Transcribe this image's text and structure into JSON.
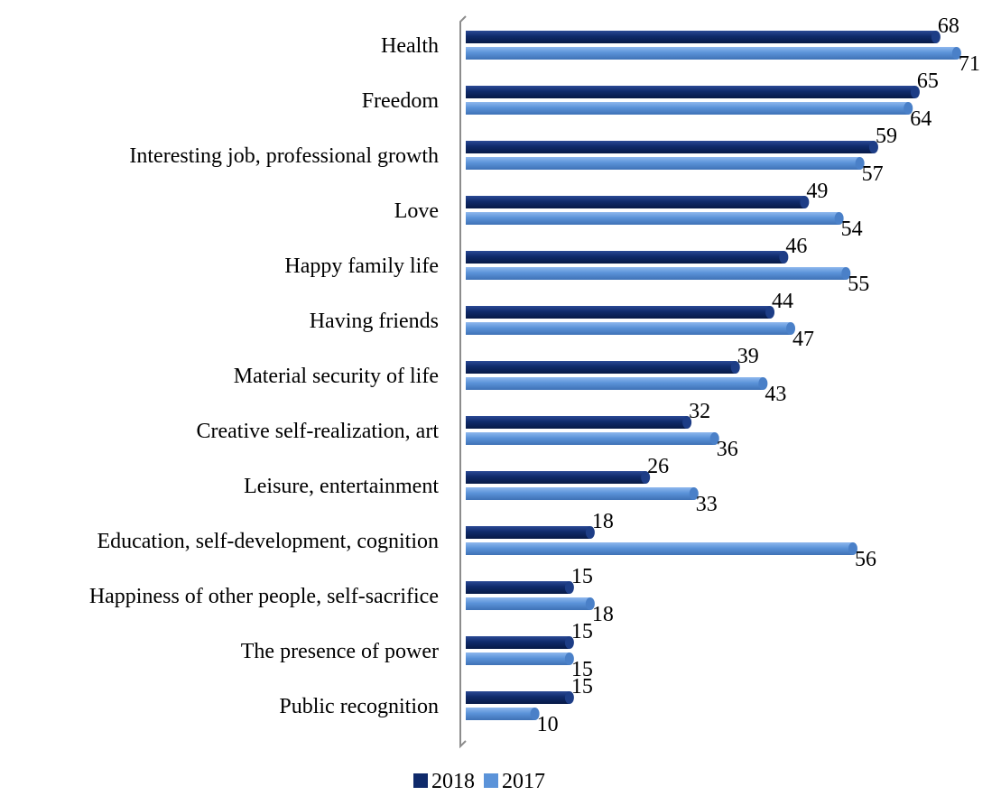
{
  "chart_data": {
    "type": "bar",
    "orientation": "horizontal",
    "categories": [
      "Health",
      "Freedom",
      "Interesting job, professional growth",
      "Love",
      "Happy family life",
      "Having friends",
      "Material security of life",
      "Creative self-realization, art",
      "Leisure, entertainment",
      "Education, self-development, cognition",
      "Happiness of other people, self-sacrifice",
      "The presence of power",
      "Public recognition"
    ],
    "series": [
      {
        "name": "2018",
        "color": "#0f2a6b",
        "values": [
          68,
          65,
          59,
          49,
          46,
          44,
          39,
          32,
          26,
          18,
          15,
          15,
          15
        ]
      },
      {
        "name": "2017",
        "color": "#5b93d9",
        "values": [
          71,
          64,
          57,
          54,
          55,
          47,
          43,
          36,
          33,
          56,
          18,
          15,
          10
        ]
      }
    ],
    "xlim": [
      0,
      75
    ],
    "data_labels": true,
    "grid": false,
    "legend": "bottom"
  }
}
